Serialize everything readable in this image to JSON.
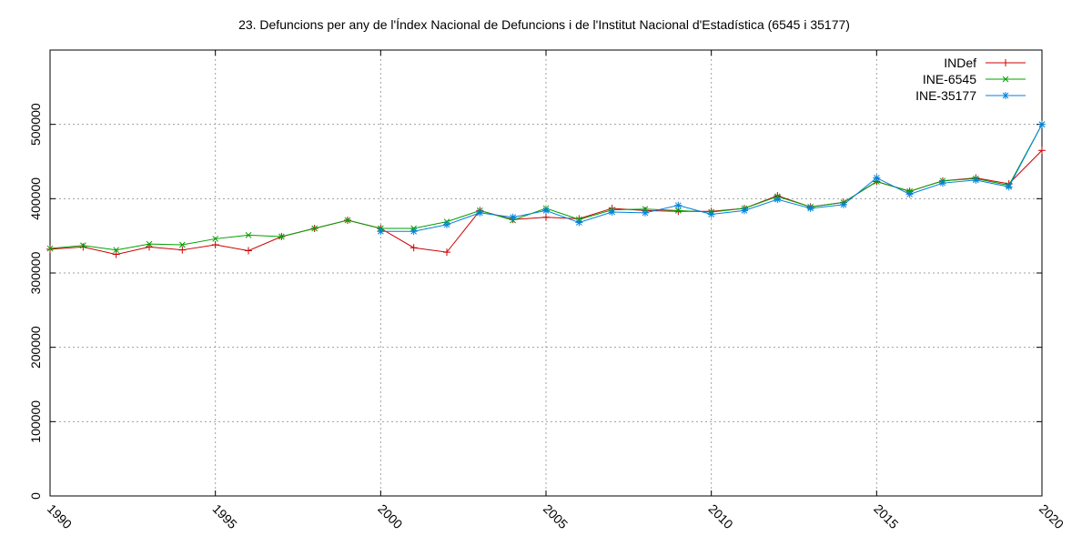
{
  "chart_data": {
    "type": "line",
    "title": "23. Defuncions per any de l'Índex Nacional de Defuncions i de l'Institut Nacional d'Estadística (6545 i 35177)",
    "xlabel": "",
    "ylabel": "",
    "xlim": [
      1990,
      2020
    ],
    "ylim": [
      0,
      600000
    ],
    "grid": true,
    "legend_position": "top-right",
    "x_ticks": [
      "1990",
      "1995",
      "2000",
      "2005",
      "2010",
      "2015",
      "2020"
    ],
    "y_ticks": [
      "0",
      "100000",
      "200000",
      "300000",
      "400000",
      "500000"
    ],
    "series": [
      {
        "name": "INDef",
        "color": "#cc0000",
        "marker": "plus",
        "points": [
          [
            1990,
            332000
          ],
          [
            1991,
            335000
          ],
          [
            1992,
            325000
          ],
          [
            1993,
            335000
          ],
          [
            1994,
            331000
          ],
          [
            1995,
            338000
          ],
          [
            1996,
            330000
          ],
          [
            1997,
            349000
          ],
          [
            1998,
            360000
          ],
          [
            1999,
            371000
          ],
          [
            2000,
            360000
          ],
          [
            2001,
            334000
          ],
          [
            2002,
            328000
          ],
          [
            2003,
            384000
          ],
          [
            2004,
            372000
          ],
          [
            2005,
            375000
          ],
          [
            2006,
            373000
          ],
          [
            2007,
            387000
          ],
          [
            2008,
            384000
          ],
          [
            2009,
            383000
          ],
          [
            2010,
            383000
          ],
          [
            2011,
            387000
          ],
          [
            2012,
            404000
          ],
          [
            2013,
            389000
          ],
          [
            2014,
            395000
          ],
          [
            2015,
            423000
          ],
          [
            2016,
            410000
          ],
          [
            2017,
            424000
          ],
          [
            2018,
            428000
          ],
          [
            2019,
            420000
          ],
          [
            2020,
            465000
          ]
        ]
      },
      {
        "name": "INE-6545",
        "color": "#00a000",
        "marker": "cross",
        "points": [
          [
            1990,
            333000
          ],
          [
            1991,
            337000
          ],
          [
            1992,
            331000
          ],
          [
            1993,
            339000
          ],
          [
            1994,
            338000
          ],
          [
            1995,
            346000
          ],
          [
            1996,
            351000
          ],
          [
            1997,
            349000
          ],
          [
            1998,
            360000
          ],
          [
            1999,
            371000
          ],
          [
            2000,
            360000
          ],
          [
            2001,
            360000
          ],
          [
            2002,
            369000
          ],
          [
            2003,
            384000
          ],
          [
            2004,
            371000
          ],
          [
            2005,
            387000
          ],
          [
            2006,
            372000
          ],
          [
            2007,
            385000
          ],
          [
            2008,
            386000
          ],
          [
            2009,
            384000
          ],
          [
            2010,
            382000
          ],
          [
            2011,
            387000
          ],
          [
            2012,
            403000
          ],
          [
            2013,
            389000
          ],
          [
            2014,
            395000
          ],
          [
            2015,
            423000
          ],
          [
            2016,
            410000
          ],
          [
            2017,
            424000
          ],
          [
            2018,
            427000
          ],
          [
            2019,
            418000
          ],
          [
            2020,
            500000
          ]
        ]
      },
      {
        "name": "INE-35177",
        "color": "#0080e0",
        "marker": "star",
        "points": [
          [
            2000,
            356000
          ],
          [
            2001,
            356000
          ],
          [
            2002,
            365000
          ],
          [
            2003,
            381000
          ],
          [
            2004,
            375000
          ],
          [
            2005,
            384000
          ],
          [
            2006,
            368000
          ],
          [
            2007,
            382000
          ],
          [
            2008,
            381000
          ],
          [
            2009,
            391000
          ],
          [
            2010,
            379000
          ],
          [
            2011,
            384000
          ],
          [
            2012,
            399000
          ],
          [
            2013,
            387000
          ],
          [
            2014,
            392000
          ],
          [
            2015,
            428000
          ],
          [
            2016,
            406000
          ],
          [
            2017,
            421000
          ],
          [
            2018,
            425000
          ],
          [
            2019,
            416000
          ],
          [
            2020,
            500000
          ]
        ]
      }
    ]
  }
}
